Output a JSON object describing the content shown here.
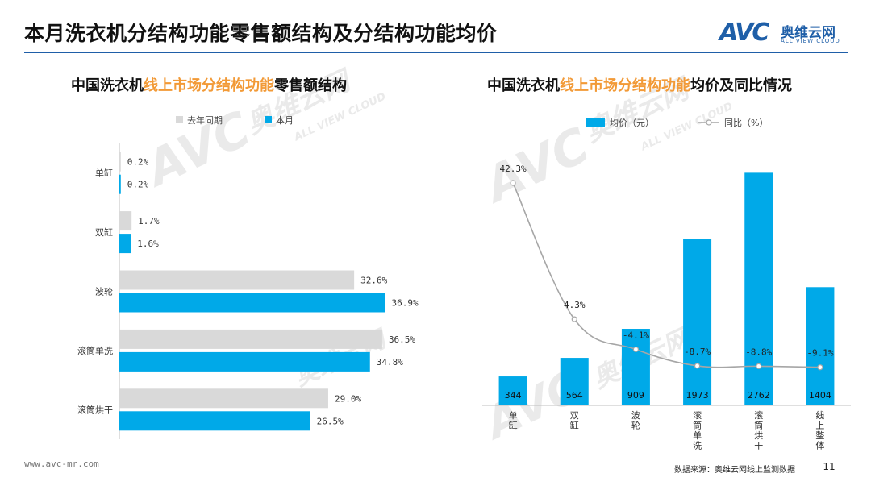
{
  "page_title": "本月洗衣机分结构功能零售额结构及分结构功能均价",
  "logo": {
    "mark": "AVC",
    "name_cn": "奥维云网",
    "name_en": "ALL VIEW CLOUD"
  },
  "watermark": {
    "mark": "AVC",
    "name_cn": "奥维云网",
    "name_en": "ALL VIEW CLOUD"
  },
  "footer": {
    "url": "www.avc-mr.com",
    "source": "数据来源：奥维云网线上监测数据",
    "page": "-11-"
  },
  "colors": {
    "accent_blue": "#00a9e8",
    "gray_bar": "#d9d9d9",
    "highlight_orange": "#f29a37",
    "brand_blue": "#1f5fa8",
    "line_gray": "#a6a6a6"
  },
  "chart_data": [
    {
      "type": "bar",
      "orientation": "horizontal",
      "title_parts": [
        "中国洗衣机",
        "线上市场分结构功能",
        "零售额结构"
      ],
      "categories": [
        "单缸",
        "双缸",
        "波轮",
        "滚筒单洗",
        "滚筒烘干"
      ],
      "series": [
        {
          "name": "去年同期",
          "values": [
            0.2,
            1.7,
            32.6,
            36.5,
            29.0
          ],
          "labels": [
            "0.2%",
            "1.7%",
            "32.6%",
            "36.5%",
            "29.0%"
          ],
          "color": "#d9d9d9"
        },
        {
          "name": "本月",
          "values": [
            0.2,
            1.6,
            36.9,
            34.8,
            26.5
          ],
          "labels": [
            "0.2%",
            "1.6%",
            "36.9%",
            "34.8%",
            "26.5%"
          ],
          "color": "#00a9e8"
        }
      ],
      "xlim": [
        0,
        40
      ],
      "unit": "%",
      "legend": "top",
      "grid": false
    },
    {
      "type": "bar+line",
      "title_parts": [
        "中国洗衣机",
        "线上市场分结构功能",
        "均价及同比情况"
      ],
      "categories": [
        "单缸",
        "双缸",
        "波轮",
        "滚筒单洗",
        "滚筒烘干",
        "线上整体"
      ],
      "bars": {
        "name": "均价（元）",
        "values": [
          344,
          564,
          909,
          1973,
          2762,
          1404
        ],
        "labels": [
          "344",
          "564",
          "909",
          "1973",
          "2762",
          "1404"
        ],
        "color": "#00a9e8"
      },
      "line": {
        "name": "同比（%）",
        "values": [
          42.3,
          4.3,
          -4.1,
          -8.7,
          -8.8,
          -9.1
        ],
        "labels": [
          "42.3%",
          "4.3%",
          "-4.1%",
          "-8.7%",
          "-8.8%",
          "-9.1%"
        ],
        "color": "#a6a6a6"
      },
      "legend": "top",
      "grid": false
    }
  ]
}
